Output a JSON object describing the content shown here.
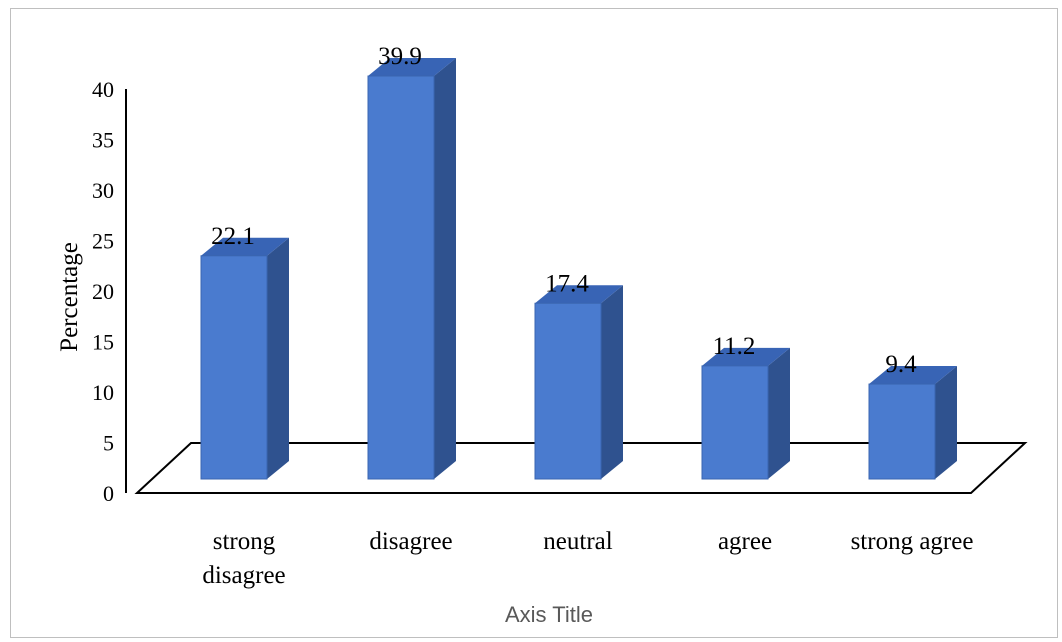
{
  "chart_data": {
    "type": "bar",
    "style": "3d-column",
    "categories": [
      [
        "strong",
        "disagree"
      ],
      [
        "disagree"
      ],
      [
        "neutral"
      ],
      [
        "agree"
      ],
      [
        "strong agree"
      ]
    ],
    "values": [
      22.1,
      39.9,
      17.4,
      11.2,
      9.4
    ],
    "data_labels": [
      "22.1",
      "39.9",
      "17.4",
      "11.2",
      "9.4"
    ],
    "yticks": [
      "0",
      "5",
      "10",
      "15",
      "20",
      "25",
      "30",
      "35",
      "40"
    ],
    "ylim": [
      0,
      40
    ],
    "ylabel": "Percentage",
    "xlabel": "Axis Title",
    "grid": false,
    "colors": {
      "front": "#4a7bcf",
      "side": "#2f528f",
      "top": "#3864b5",
      "edge": "#3a66b0"
    }
  }
}
